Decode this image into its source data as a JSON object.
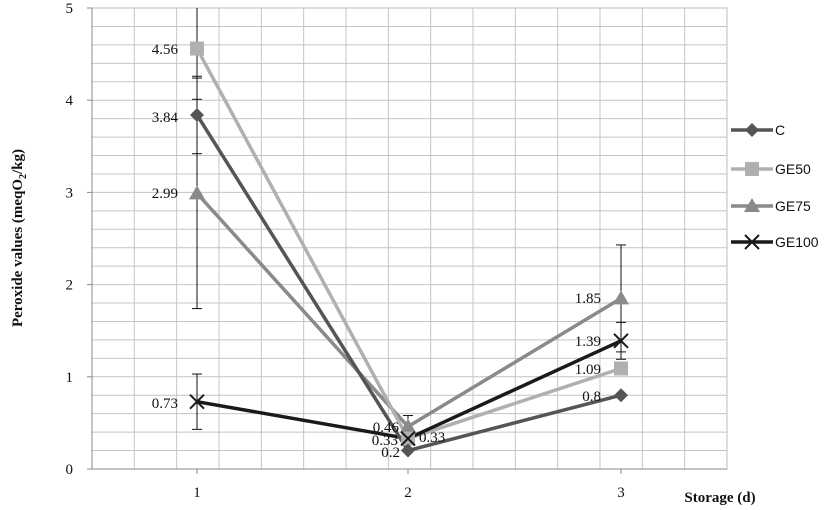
{
  "chart_data": {
    "type": "line",
    "title": "",
    "xlabel": "Storage (d)",
    "ylabel_main": "Peroxide values (meqO",
    "ylabel_sub": "2",
    "ylabel_end": "/kg)",
    "x": [
      1,
      2,
      3
    ],
    "x_tick_labels": [
      "1",
      "2",
      "3"
    ],
    "y_tick_labels": [
      "0",
      "1",
      "2",
      "3",
      "4",
      "5"
    ],
    "ylim": [
      0,
      5
    ],
    "grid": true,
    "legend_position": "right",
    "series": [
      {
        "name": "C",
        "values": [
          3.84,
          0.2,
          0.8
        ],
        "labels": [
          "3.84",
          "0.2",
          "0.8"
        ],
        "color": "#555555",
        "marker": "diamond",
        "error": [
          0.42,
          0,
          0
        ]
      },
      {
        "name": "GE50",
        "values": [
          4.56,
          0.33,
          1.09
        ],
        "labels": [
          "4.56",
          "0.33",
          "1.09"
        ],
        "color": "#b0b0b0",
        "marker": "square",
        "error": [
          0.55,
          0,
          0
        ]
      },
      {
        "name": "GE75",
        "values": [
          2.99,
          0.46,
          1.85
        ],
        "labels": [
          "2.99",
          "0.46",
          "1.85"
        ],
        "color": "#8a8a8a",
        "marker": "triangle",
        "error": [
          1.25,
          0.12,
          0.58
        ]
      },
      {
        "name": "GE100",
        "values": [
          0.73,
          0.33,
          1.39
        ],
        "labels": [
          "0.73",
          "0.33",
          "1.39"
        ],
        "color": "#1a1a1a",
        "marker": "x",
        "error": [
          0.3,
          0,
          0.2
        ]
      }
    ]
  }
}
